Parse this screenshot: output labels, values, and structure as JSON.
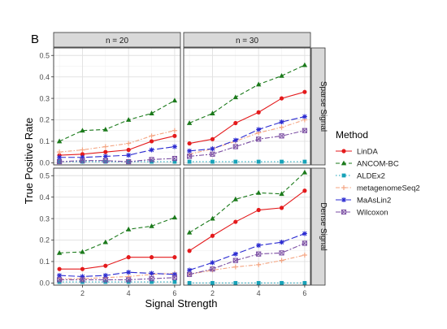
{
  "figure": {
    "panel_label": "B"
  },
  "chart_data": {
    "type": "line",
    "ylabel": "True Positive Rate",
    "xlabel": "Signal Strength",
    "x": [
      1,
      2,
      3,
      4,
      5,
      6
    ],
    "xticks": [
      2,
      4,
      6
    ],
    "xlim": [
      0.75,
      6.25
    ],
    "yticks": [
      0.0,
      0.1,
      0.2,
      0.3,
      0.4,
      0.5
    ],
    "ylim": [
      -0.01,
      0.535
    ],
    "grid": true,
    "columns": [
      "n = 20",
      "n = 30"
    ],
    "rows": [
      "Sparse Signal",
      "Dense Signal"
    ],
    "legend": {
      "title": "Method",
      "placement": "right",
      "items": [
        "LinDA",
        "ANCOM-BC",
        "ALDEx2",
        "metagenomeSeq2",
        "MaAsLin2",
        "Wilcoxon"
      ]
    },
    "series_styles": {
      "LinDA": {
        "color": "#e41a1c",
        "dash": "solid",
        "marker": "circle"
      },
      "ANCOM-BC": {
        "color": "#1b7a1b",
        "dash": "dashed",
        "marker": "triangle"
      },
      "ALDEx2": {
        "color": "#17a2b8",
        "dash": "dotted",
        "marker": "square"
      },
      "metagenomeSeq2": {
        "color": "#f4a582",
        "dash": "dashdot",
        "marker": "plus"
      },
      "MaAsLin2": {
        "color": "#2b2bd1",
        "dash": "longdash",
        "marker": "star"
      },
      "Wilcoxon": {
        "color": "#7b4ea3",
        "dash": "twodash",
        "marker": "square-cross"
      }
    },
    "panels": [
      {
        "row": 0,
        "col": 0,
        "series": [
          {
            "name": "LinDA",
            "values": [
              0.035,
              0.04,
              0.05,
              0.06,
              0.1,
              0.125
            ]
          },
          {
            "name": "ANCOM-BC",
            "values": [
              0.1,
              0.15,
              0.155,
              0.2,
              0.23,
              0.29
            ]
          },
          {
            "name": "ALDEx2",
            "values": [
              0.005,
              0.005,
              0.005,
              0.005,
              0.005,
              0.005
            ]
          },
          {
            "name": "metagenomeSeq2",
            "values": [
              0.05,
              0.06,
              0.075,
              0.09,
              0.125,
              0.15
            ]
          },
          {
            "name": "MaAsLin2",
            "values": [
              0.025,
              0.025,
              0.03,
              0.035,
              0.06,
              0.075
            ]
          },
          {
            "name": "Wilcoxon",
            "values": [
              0.005,
              0.01,
              0.01,
              0.005,
              0.015,
              0.02
            ]
          }
        ]
      },
      {
        "row": 0,
        "col": 1,
        "series": [
          {
            "name": "LinDA",
            "values": [
              0.09,
              0.11,
              0.185,
              0.235,
              0.3,
              0.33
            ]
          },
          {
            "name": "ANCOM-BC",
            "values": [
              0.185,
              0.23,
              0.305,
              0.365,
              0.405,
              0.455
            ]
          },
          {
            "name": "ALDEx2",
            "values": [
              0.005,
              0.005,
              0.005,
              0.005,
              0.005,
              0.005
            ]
          },
          {
            "name": "metagenomeSeq2",
            "values": [
              0.04,
              0.065,
              0.1,
              0.14,
              0.165,
              0.2
            ]
          },
          {
            "name": "MaAsLin2",
            "values": [
              0.055,
              0.065,
              0.105,
              0.155,
              0.19,
              0.215
            ]
          },
          {
            "name": "Wilcoxon",
            "values": [
              0.03,
              0.04,
              0.075,
              0.11,
              0.125,
              0.15
            ]
          }
        ]
      },
      {
        "row": 1,
        "col": 0,
        "series": [
          {
            "name": "LinDA",
            "values": [
              0.065,
              0.065,
              0.08,
              0.12,
              0.12,
              0.12
            ]
          },
          {
            "name": "ANCOM-BC",
            "values": [
              0.14,
              0.145,
              0.19,
              0.25,
              0.265,
              0.305
            ]
          },
          {
            "name": "ALDEx2",
            "values": [
              0.005,
              0.005,
              0.005,
              0.005,
              0.005,
              0.005
            ]
          },
          {
            "name": "metagenomeSeq2",
            "values": [
              0.02,
              0.02,
              0.025,
              0.03,
              0.04,
              0.045
            ]
          },
          {
            "name": "MaAsLin2",
            "values": [
              0.035,
              0.03,
              0.035,
              0.05,
              0.045,
              0.04
            ]
          },
          {
            "name": "Wilcoxon",
            "values": [
              0.015,
              0.015,
              0.015,
              0.015,
              0.02,
              0.025
            ]
          }
        ]
      },
      {
        "row": 1,
        "col": 1,
        "series": [
          {
            "name": "LinDA",
            "values": [
              0.15,
              0.22,
              0.285,
              0.34,
              0.35,
              0.43
            ]
          },
          {
            "name": "ANCOM-BC",
            "values": [
              0.235,
              0.3,
              0.39,
              0.42,
              0.415,
              0.515
            ]
          },
          {
            "name": "ALDEx2",
            "values": [
              0.0,
              0.0,
              0.0,
              0.0,
              0.0,
              0.0
            ]
          },
          {
            "name": "metagenomeSeq2",
            "values": [
              0.04,
              0.06,
              0.075,
              0.085,
              0.105,
              0.13
            ]
          },
          {
            "name": "MaAsLin2",
            "values": [
              0.06,
              0.095,
              0.135,
              0.175,
              0.19,
              0.23
            ]
          },
          {
            "name": "Wilcoxon",
            "values": [
              0.04,
              0.065,
              0.105,
              0.135,
              0.14,
              0.185
            ]
          }
        ]
      }
    ]
  }
}
